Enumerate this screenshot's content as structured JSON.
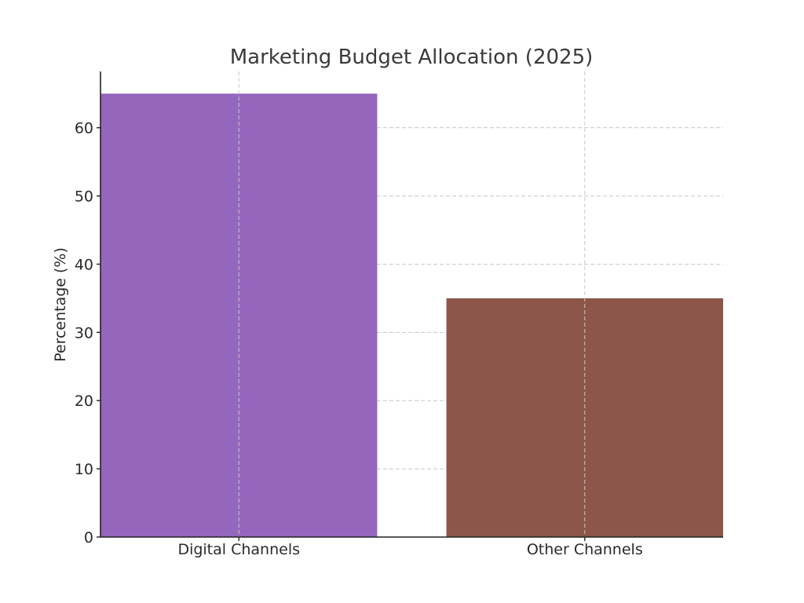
{
  "chart_data": {
    "type": "bar",
    "title": "Marketing Budget Allocation (2025)",
    "xlabel": "",
    "ylabel": "Percentage (%)",
    "categories": [
      "Digital Channels",
      "Other Channels"
    ],
    "values": [
      65,
      35
    ],
    "colors": [
      "#9467bd",
      "#8c564b"
    ],
    "ylim": [
      0,
      68.25
    ],
    "yticks": [
      0,
      10,
      20,
      30,
      40,
      50,
      60
    ],
    "grid": true,
    "legend": "none"
  }
}
